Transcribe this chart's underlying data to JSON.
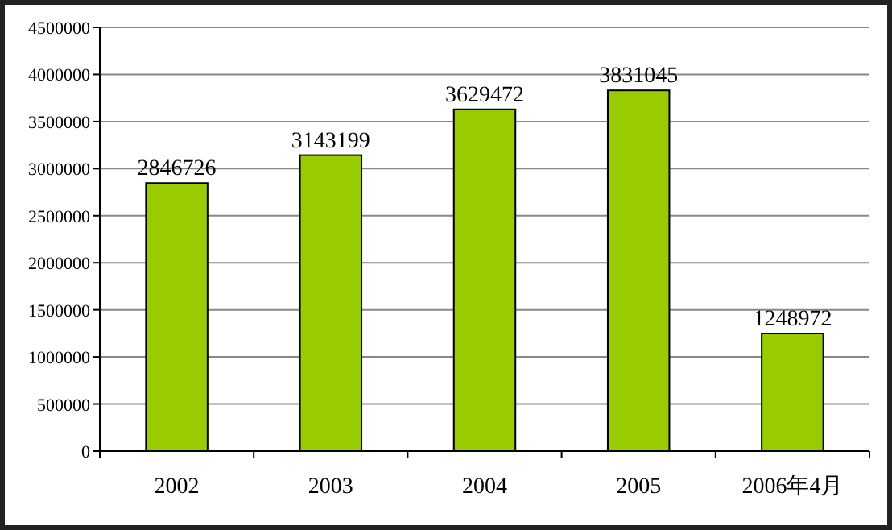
{
  "chart_data": {
    "type": "bar",
    "categories": [
      "2002",
      "2003",
      "2004",
      "2005",
      "2006年4月"
    ],
    "values": [
      2846726,
      3143199,
      3629472,
      3831045,
      1248972
    ],
    "color": "#99cc00",
    "ylim": [
      0,
      4500000
    ],
    "yticks": [
      0,
      500000,
      1000000,
      1500000,
      2000000,
      2500000,
      3000000,
      3500000,
      4000000,
      4500000
    ],
    "grid": "y",
    "data_labels": true
  }
}
